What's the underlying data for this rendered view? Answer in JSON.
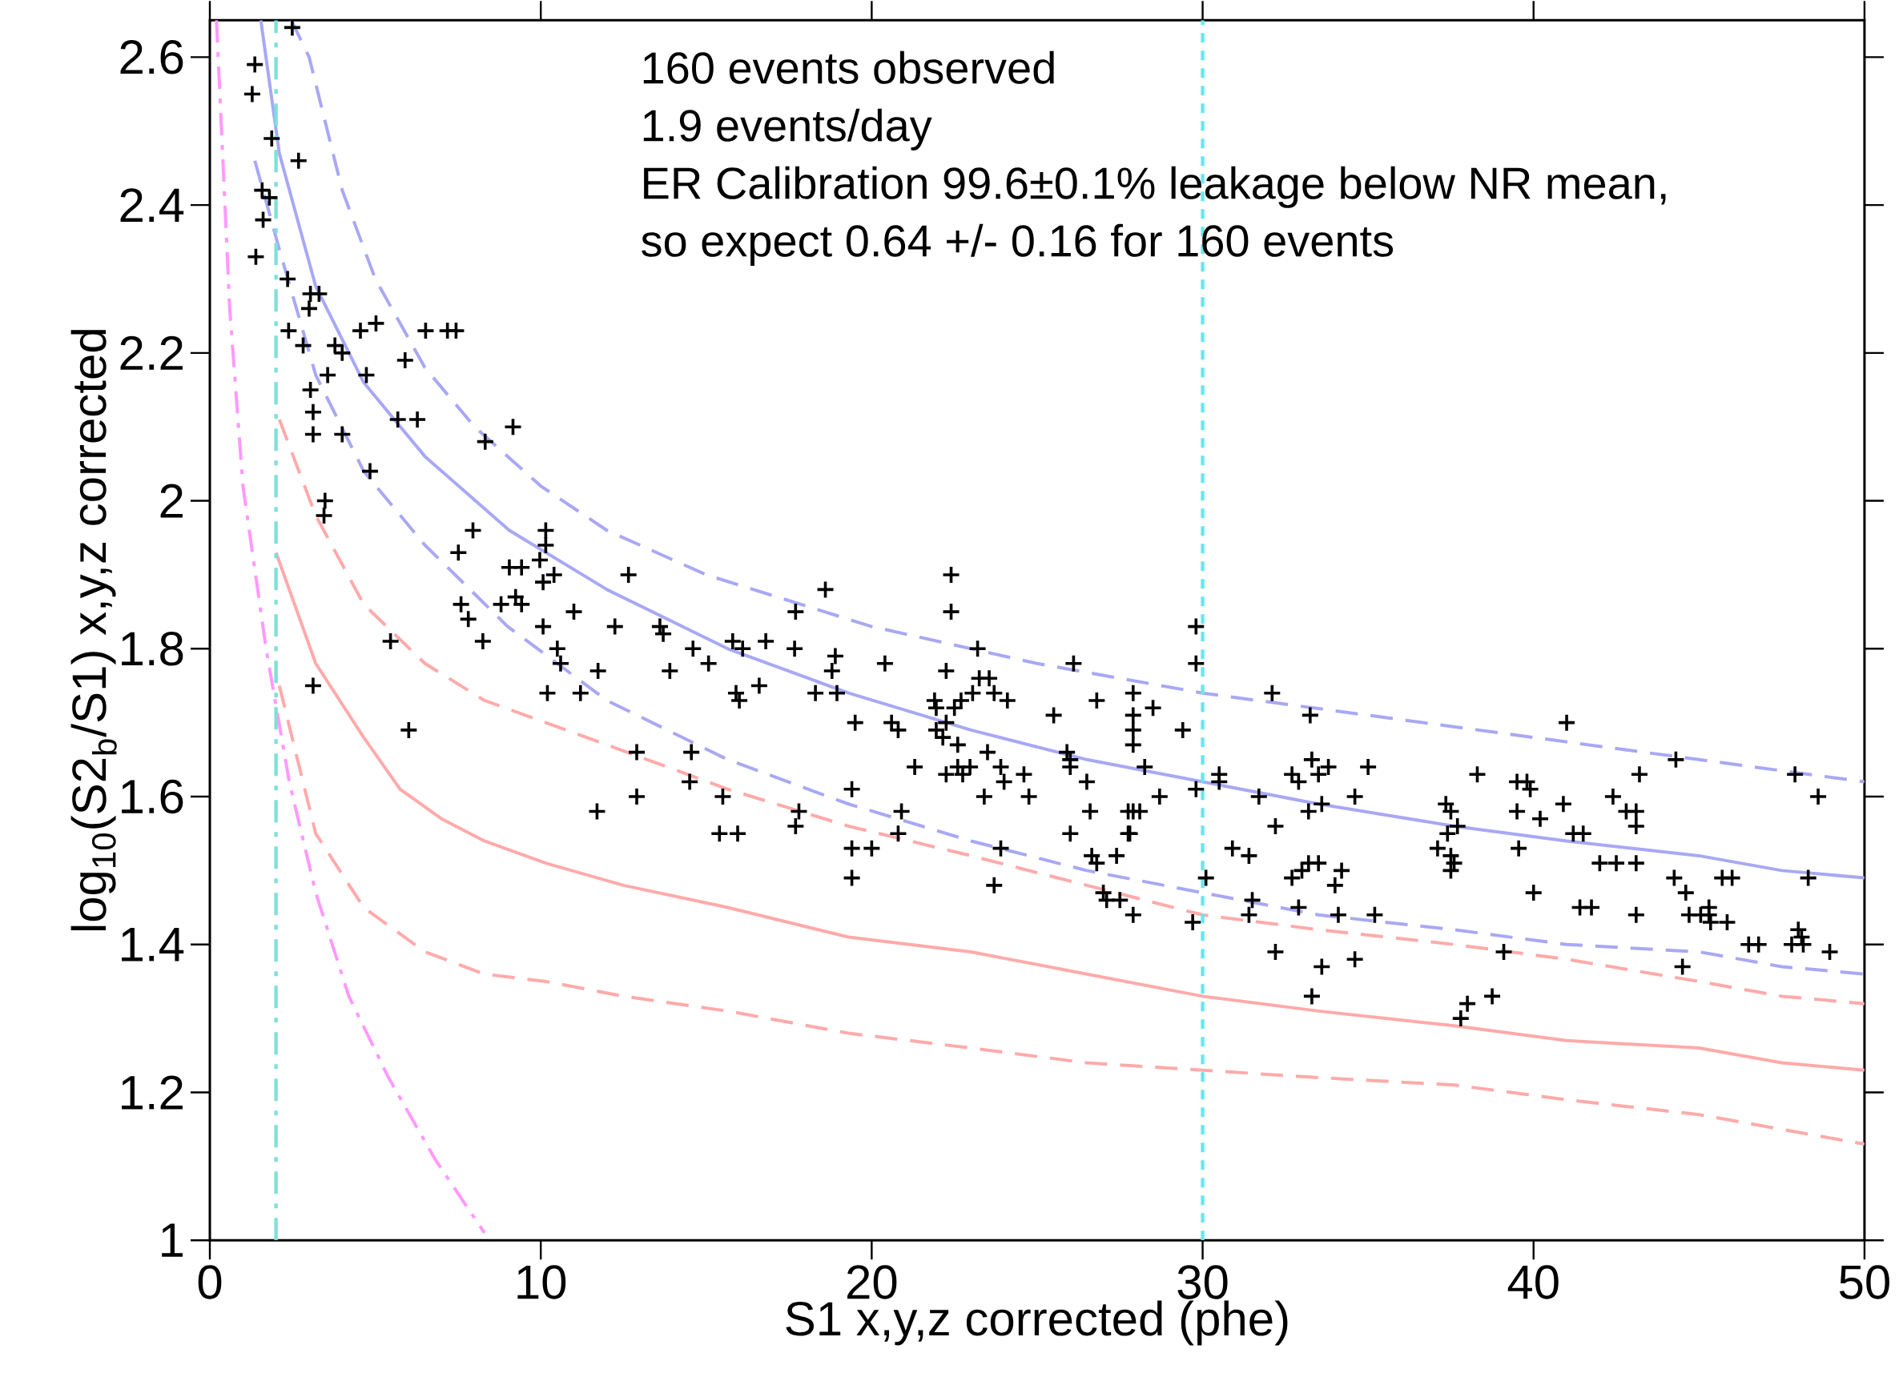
{
  "chart_data": {
    "type": "scatter",
    "xlabel": "S1 x,y,z corrected (phe)",
    "ylabel": "log$_{10}$(S2$_{b}$/S1) x,y,z corrected",
    "annotations": [
      "160 events observed",
      "1.9 events/day",
      "ER Calibration 99.6±0.1% leakage below NR mean,",
      "so expect 0.64 +/- 0.16 for 160 events"
    ],
    "xlim": [
      0,
      50
    ],
    "ylim": [
      1,
      2.65
    ],
    "xticks": [
      0,
      10,
      20,
      30,
      40,
      50
    ],
    "yticks": [
      1,
      1.2,
      1.4,
      1.6,
      1.8,
      2,
      2.2,
      2.4,
      2.6
    ],
    "ref_lines": [
      {
        "axis": "x",
        "value": 2,
        "color": "#7fe0d8",
        "line_style": "dashdot"
      },
      {
        "axis": "x",
        "value": 30,
        "color": "#66e8ee",
        "line_style": "dotted"
      }
    ],
    "series": [
      {
        "type": "line",
        "color": "#ff99ff",
        "line_style": "dashdot",
        "x": [
          0.2,
          0.6,
          1.0,
          1.7,
          2.4,
          3.2,
          4.2,
          5.4,
          6.8,
          8.3
        ],
        "values": [
          2.65,
          2.26,
          2.02,
          1.8,
          1.62,
          1.47,
          1.33,
          1.22,
          1.11,
          1.01
        ]
      },
      {
        "type": "line",
        "color": "#ffaaaa",
        "line_style": "solid",
        "x": [
          2.0,
          3.2,
          4.65,
          5.75,
          7,
          8.3,
          10.15,
          12.5,
          15.65,
          19.3,
          23,
          26.5,
          30,
          33.5,
          37.6,
          41,
          45,
          47.5,
          50
        ],
        "values": [
          1.93,
          1.78,
          1.68,
          1.61,
          1.57,
          1.54,
          1.51,
          1.48,
          1.45,
          1.41,
          1.39,
          1.36,
          1.33,
          1.31,
          1.29,
          1.27,
          1.26,
          1.24,
          1.23
        ]
      },
      {
        "type": "line",
        "color": "#ffaaaa",
        "line_style": "dashed",
        "x": [
          2.1,
          3.2,
          4.65,
          6.5,
          8.3,
          12,
          15.65,
          19.3,
          23,
          26.5,
          30,
          33.5,
          37.6,
          41,
          45,
          47.5,
          50
        ],
        "values": [
          2.11,
          1.98,
          1.86,
          1.78,
          1.73,
          1.67,
          1.61,
          1.56,
          1.52,
          1.48,
          1.44,
          1.42,
          1.4,
          1.38,
          1.35,
          1.33,
          1.32
        ]
      },
      {
        "type": "line",
        "color": "#ffaaaa",
        "line_style": "dashed",
        "x": [
          2.1,
          3.2,
          4.65,
          6.5,
          8.3,
          10.15,
          12.5,
          15.65,
          19.3,
          23,
          26.5,
          30,
          33.5,
          37.6,
          41,
          45,
          47.5,
          50
        ],
        "values": [
          1.75,
          1.55,
          1.45,
          1.39,
          1.36,
          1.35,
          1.33,
          1.31,
          1.28,
          1.26,
          1.24,
          1.23,
          1.22,
          1.21,
          1.19,
          1.17,
          1.15,
          1.13
        ]
      },
      {
        "type": "line",
        "color": "#a8a8f5",
        "line_style": "solid",
        "x": [
          1.54,
          2.1,
          3.2,
          4.65,
          6.5,
          9.05,
          12,
          15.65,
          19.3,
          23,
          26.5,
          30,
          33.5,
          37.6,
          41,
          45,
          47.5,
          50
        ],
        "values": [
          2.65,
          2.47,
          2.29,
          2.16,
          2.06,
          1.96,
          1.88,
          1.8,
          1.74,
          1.69,
          1.65,
          1.62,
          1.59,
          1.56,
          1.54,
          1.52,
          1.5,
          1.49
        ]
      },
      {
        "type": "line",
        "color": "#a8a8f5",
        "line_style": "dashed",
        "x": [
          2.46,
          3,
          4,
          5,
          6.5,
          8,
          10,
          12,
          15,
          20,
          25,
          30,
          35,
          40,
          45,
          50
        ],
        "values": [
          2.65,
          2.6,
          2.42,
          2.3,
          2.18,
          2.1,
          2.02,
          1.96,
          1.9,
          1.83,
          1.78,
          1.74,
          1.71,
          1.68,
          1.65,
          1.62
        ]
      },
      {
        "type": "line",
        "color": "#a8a8f5",
        "line_style": "dashed",
        "x": [
          1.36,
          2.1,
          3.2,
          4.65,
          6.5,
          9,
          12,
          15.65,
          19.3,
          23,
          26.5,
          30,
          33.5,
          37.6,
          41,
          45,
          47.5,
          50
        ],
        "values": [
          2.46,
          2.34,
          2.17,
          2.04,
          1.94,
          1.83,
          1.73,
          1.65,
          1.59,
          1.54,
          1.5,
          1.47,
          1.44,
          1.42,
          1.4,
          1.39,
          1.37,
          1.36
        ]
      },
      {
        "color": "#000000",
        "marker": "cross",
        "x": [
          2.49,
          1.36,
          1.28,
          1.87,
          2.68,
          1.58,
          1.8,
          1.61,
          1.39,
          2.35,
          3.04,
          3.3,
          3.0,
          2.38,
          2.82,
          3.78,
          4.0,
          4.55,
          5.02,
          6.52,
          7.18,
          7.44,
          5.9,
          4.73,
          3.56,
          3.04,
          3.12,
          3.12,
          4.0,
          5.68,
          6.27,
          4.84,
          9.16,
          8.32,
          3.48,
          3.45,
          7.95,
          7.51,
          10.15,
          10.15,
          9.05,
          9.42,
          9.97,
          10.4,
          10.07,
          9.24,
          9.42,
          8.8,
          7.59,
          7.81,
          8.25,
          5.46,
          3.12,
          6.01,
          10.07,
          11.0,
          10.5,
          10.6,
          10.2,
          11.2,
          11.73,
          12.65,
          12.24,
          13.6,
          13.7,
          13.9,
          14.6,
          15.07,
          15.8,
          16.1,
          16.8,
          17.67,
          17.7,
          18.6,
          18.9,
          18.8,
          16.6,
          15.9,
          16.0,
          18.3,
          18.95,
          19.5,
          20.4,
          20.6,
          20.8,
          21.3,
          20.9,
          20.8,
          20.0,
          19.4,
          19.4,
          19.4,
          17.8,
          17.7,
          15.5,
          14.55,
          14.5,
          12.9,
          12.9,
          11.7,
          15.4,
          15.95,
          22.25,
          21.9,
          21.95,
          21.95,
          22.15,
          22.4,
          22.4,
          22.25,
          23.2,
          23.25,
          23.55,
          23.05,
          22.7,
          22.5,
          23.7,
          24.1,
          22.6,
          22.6,
          22.25,
          22.75,
          22.97,
          23.5,
          23.9,
          24.0,
          24.6,
          24.75,
          23.4,
          23.9,
          23.7,
          25.5,
          26.1,
          25.9,
          26.0,
          26.0,
          26.8,
          26.5,
          26.6,
          26.0,
          26.65,
          26.8,
          27.0,
          27.1,
          27.5,
          27.9,
          27.4,
          27.75,
          27.8,
          27.75,
          27.9,
          28.1,
          27.9,
          27.9,
          27.9,
          27.9,
          28.5,
          28.25,
          28.7,
          29.4,
          29.8,
          29.8,
          29.8,
          29.7,
          30.1,
          30.5,
          30.5,
          30.9,
          31.4,
          31.5,
          31.4,
          31.7,
          32.1,
          32.2,
          32.2,
          32.7,
          32.9,
          32.9,
          32.7,
          33.0,
          33.2,
          33.2,
          33.25,
          33.3,
          33.5,
          33.3,
          33.6,
          33.6,
          33.8,
          33.5,
          34.0,
          34.2,
          34.1,
          34.6,
          34.6,
          35.0,
          35.2,
          37.1,
          37.35,
          37.4,
          37.5,
          37.5,
          37.6,
          37.5,
          37.7,
          37.8,
          38.0,
          38.3,
          38.75,
          39.1,
          39.5,
          39.5,
          39.55,
          39.8,
          39.9,
          40.0,
          40.2,
          40.9,
          41.0,
          41.2,
          41.4,
          41.5,
          41.75,
          42.0,
          42.4,
          42.5,
          42.8,
          43.1,
          43.1,
          43.2,
          43.1,
          43.1,
          44.3,
          44.25,
          44.5,
          44.6,
          44.7,
          45.05,
          45.3,
          45.3,
          45.35,
          45.7,
          45.85,
          46.0,
          46.5,
          46.8,
          47.9,
          48.0,
          48.1,
          47.8,
          48.15,
          48.3,
          48.6,
          48.95
        ],
        "values": [
          2.64,
          2.59,
          2.55,
          2.49,
          2.46,
          2.42,
          2.41,
          2.38,
          2.33,
          2.3,
          2.28,
          2.28,
          2.26,
          2.23,
          2.21,
          2.21,
          2.2,
          2.23,
          2.24,
          2.23,
          2.23,
          2.23,
          2.19,
          2.17,
          2.17,
          2.15,
          2.12,
          2.09,
          2.09,
          2.11,
          2.11,
          2.04,
          2.1,
          2.08,
          2.0,
          1.98,
          1.96,
          1.93,
          1.96,
          1.94,
          1.91,
          1.91,
          1.92,
          1.9,
          1.89,
          1.87,
          1.86,
          1.86,
          1.86,
          1.84,
          1.81,
          1.81,
          1.75,
          1.69,
          1.83,
          1.85,
          1.8,
          1.78,
          1.74,
          1.74,
          1.77,
          1.9,
          1.83,
          1.83,
          1.82,
          1.77,
          1.8,
          1.78,
          1.81,
          1.8,
          1.81,
          1.8,
          1.85,
          1.88,
          1.79,
          1.77,
          1.75,
          1.74,
          1.73,
          1.74,
          1.74,
          1.7,
          1.78,
          1.7,
          1.69,
          1.64,
          1.58,
          1.55,
          1.53,
          1.53,
          1.49,
          1.61,
          1.58,
          1.56,
          1.6,
          1.66,
          1.62,
          1.66,
          1.6,
          1.58,
          1.55,
          1.55,
          1.7,
          1.73,
          1.72,
          1.69,
          1.68,
          1.9,
          1.85,
          1.77,
          1.8,
          1.76,
          1.76,
          1.74,
          1.73,
          1.72,
          1.74,
          1.73,
          1.67,
          1.64,
          1.63,
          1.63,
          1.64,
          1.66,
          1.64,
          1.62,
          1.63,
          1.6,
          1.6,
          1.53,
          1.48,
          1.71,
          1.78,
          1.66,
          1.65,
          1.64,
          1.73,
          1.62,
          1.58,
          1.55,
          1.52,
          1.51,
          1.47,
          1.46,
          1.46,
          1.44,
          1.52,
          1.55,
          1.55,
          1.58,
          1.58,
          1.58,
          1.67,
          1.69,
          1.71,
          1.74,
          1.72,
          1.64,
          1.6,
          1.69,
          1.83,
          1.78,
          1.61,
          1.43,
          1.49,
          1.63,
          1.62,
          1.53,
          1.52,
          1.46,
          1.44,
          1.6,
          1.74,
          1.56,
          1.39,
          1.63,
          1.62,
          1.45,
          1.49,
          1.5,
          1.51,
          1.58,
          1.71,
          1.65,
          1.63,
          1.33,
          1.37,
          1.59,
          1.64,
          1.51,
          1.48,
          1.5,
          1.44,
          1.38,
          1.6,
          1.64,
          1.44,
          1.53,
          1.59,
          1.55,
          1.52,
          1.5,
          1.51,
          1.58,
          1.56,
          1.3,
          1.32,
          1.63,
          1.33,
          1.39,
          1.58,
          1.62,
          1.53,
          1.62,
          1.61,
          1.47,
          1.57,
          1.59,
          1.7,
          1.55,
          1.45,
          1.55,
          1.45,
          1.51,
          1.6,
          1.51,
          1.58,
          1.51,
          1.44,
          1.63,
          1.58,
          1.56,
          1.65,
          1.49,
          1.37,
          1.47,
          1.44,
          1.44,
          1.45,
          1.44,
          1.43,
          1.49,
          1.43,
          1.49,
          1.4,
          1.4,
          1.63,
          1.42,
          1.41,
          1.4,
          1.4,
          1.49,
          1.6,
          1.39
        ]
      }
    ]
  }
}
